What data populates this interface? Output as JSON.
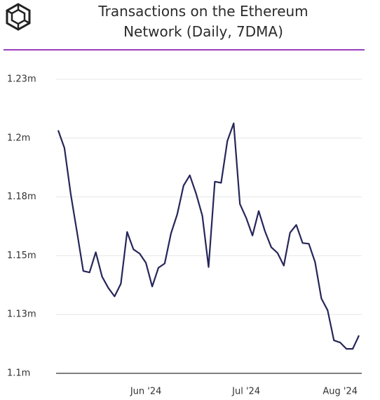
{
  "chart_data": {
    "type": "line",
    "title": "Transactions on the Ethereum Network (Daily, 7DMA)",
    "categories": [
      null,
      null,
      null,
      null,
      null,
      null,
      null,
      null,
      null,
      null,
      null,
      null,
      null,
      null,
      "Jun '24",
      null,
      null,
      null,
      null,
      null,
      null,
      null,
      null,
      null,
      null,
      null,
      null,
      null,
      null,
      null,
      "Jul '24",
      null,
      null,
      null,
      null,
      null,
      null,
      null,
      null,
      null,
      null,
      null,
      null,
      null,
      null,
      "Aug '24",
      null,
      null,
      null
    ],
    "series": [
      {
        "name": "Transactions",
        "color": "#26265a",
        "values": [
          1203300,
          1195800,
          1176200,
          1160100,
          1143500,
          1142900,
          1151500,
          1141100,
          1136300,
          1132700,
          1138100,
          1160100,
          1152700,
          1150900,
          1147000,
          1136900,
          1144900,
          1146700,
          1159500,
          1167600,
          1179800,
          1184200,
          1176500,
          1167000,
          1145200,
          1181500,
          1181000,
          1198800,
          1206300,
          1172000,
          1166100,
          1158600,
          1169000,
          1160400,
          1153600,
          1151200,
          1145800,
          1159800,
          1163100,
          1155400,
          1155100,
          1147300,
          1131800,
          1126800,
          1114000,
          1113100,
          1110400,
          1110400,
          1116100
        ]
      }
    ],
    "ylim": [
      1100000,
      1225000
    ],
    "yticks": [
      {
        "value": 1100000,
        "label": "1.1m"
      },
      {
        "value": 1125000,
        "label": "1.13m"
      },
      {
        "value": 1150000,
        "label": "1.15m"
      },
      {
        "value": 1175000,
        "label": "1.18m"
      },
      {
        "value": 1200000,
        "label": "1.2m"
      },
      {
        "value": 1225000,
        "label": "1.23m"
      }
    ],
    "grid": true
  }
}
